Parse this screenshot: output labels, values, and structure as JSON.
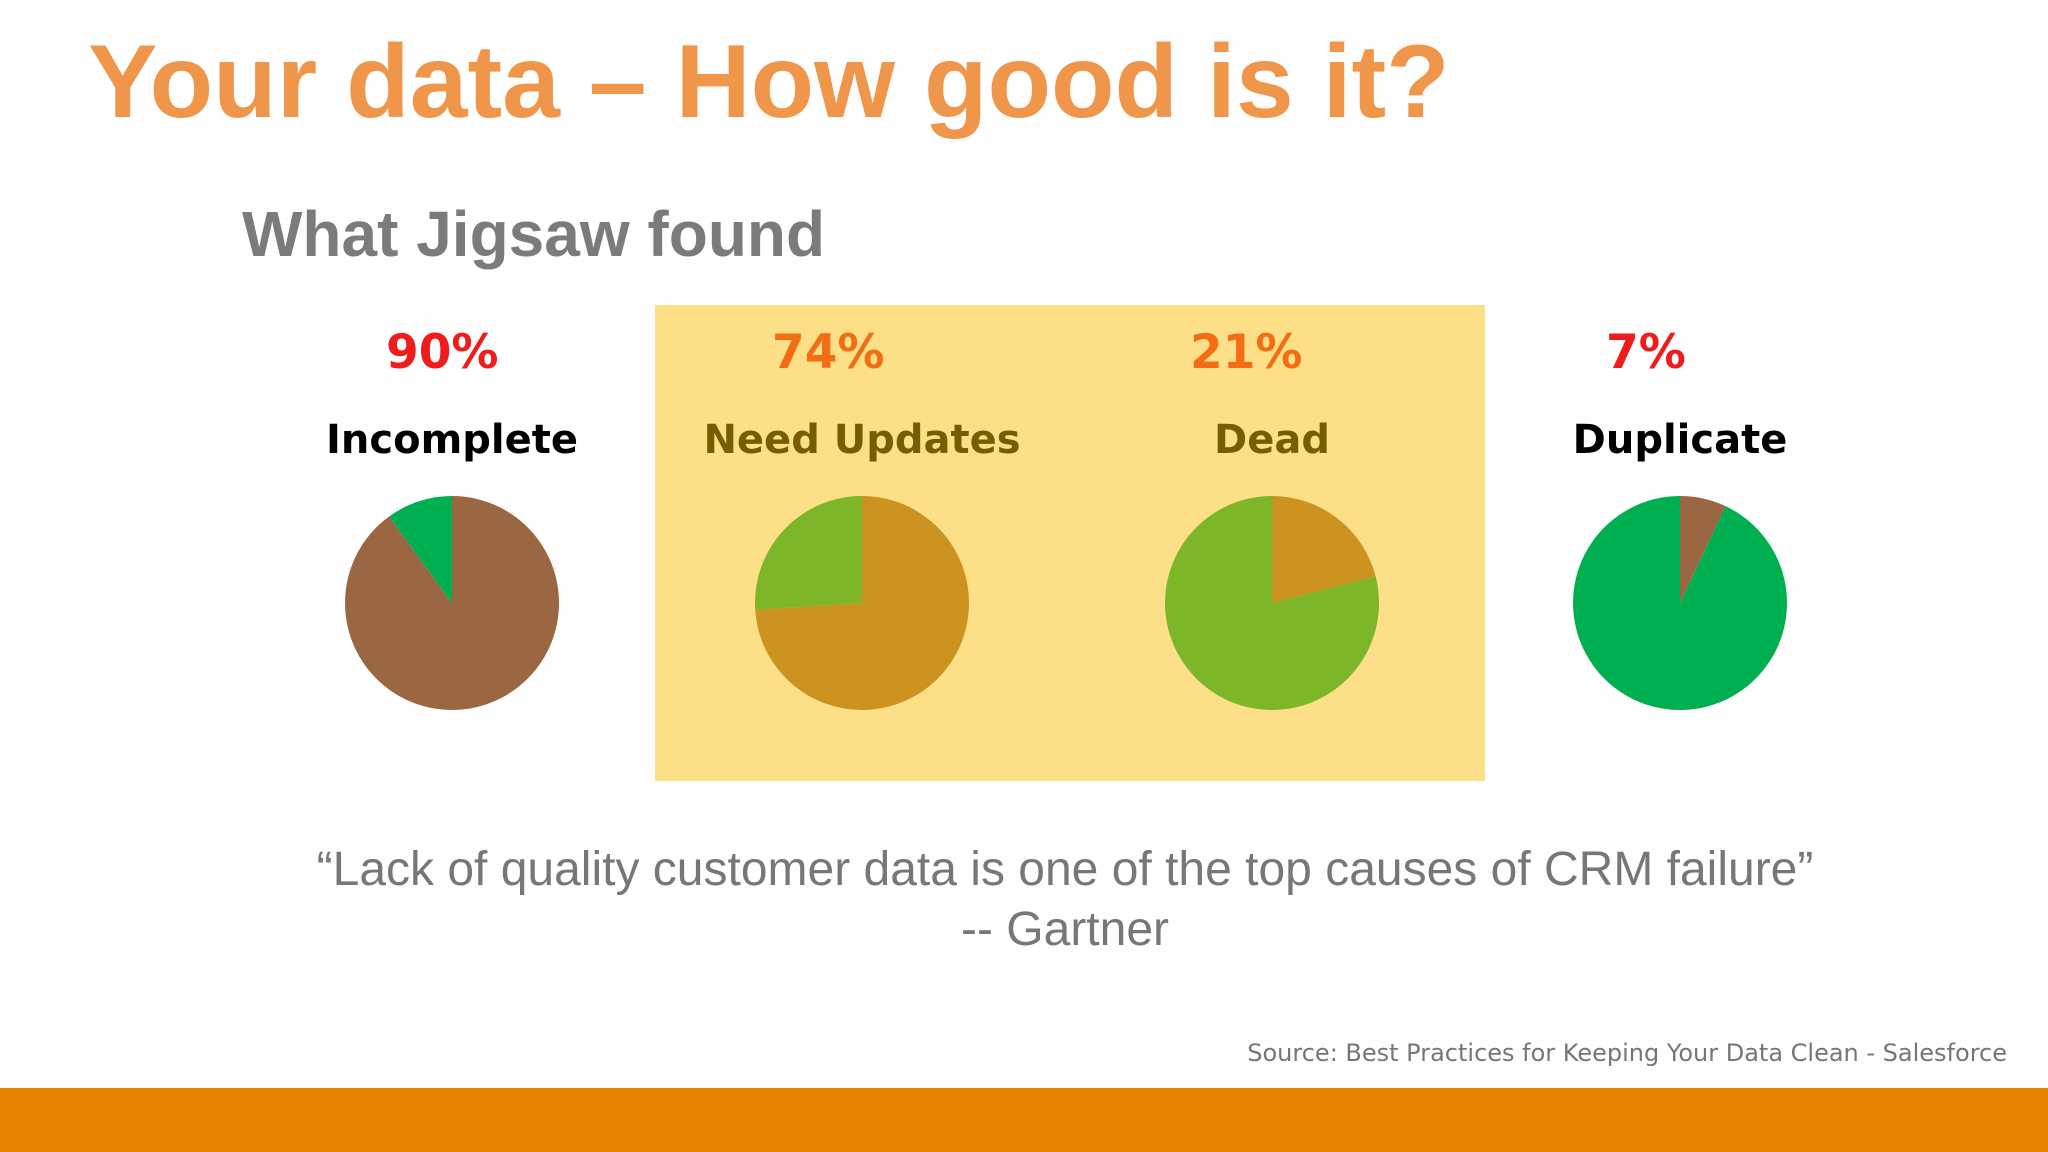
{
  "slide": {
    "title": "Your data – How good is it?",
    "subtitle": "What Jigsaw found",
    "quote_line1": "“Lack of quality customer data is one of the top causes of CRM failure”",
    "quote_line2": "-- Gartner",
    "source": "Source: Best Practices for Keeping Your Data Clean - Salesforce"
  },
  "colors": {
    "title": "#f0964a",
    "subtitle": "#7b7b7b",
    "highlight": "#fddf88",
    "footer_bar": "#e58400",
    "pct_red": "#ee1c1c",
    "pct_orange": "#f26d14",
    "label_black": "#000000",
    "label_dark_gold": "#7a5c00"
  },
  "chart_data": [
    {
      "type": "pie",
      "label": "Incomplete",
      "percent_text": "90%",
      "slices": [
        {
          "value": 90,
          "color": "#9a6742"
        },
        {
          "value": 10,
          "color": "#00b050"
        }
      ]
    },
    {
      "type": "pie",
      "label": "Need Updates",
      "percent_text": "74%",
      "slices": [
        {
          "value": 74,
          "color": "#cd9321"
        },
        {
          "value": 26,
          "color": "#7eb62a"
        }
      ]
    },
    {
      "type": "pie",
      "label": "Dead",
      "percent_text": "21%",
      "slices": [
        {
          "value": 21,
          "color": "#cd9321"
        },
        {
          "value": 79,
          "color": "#7eb62a"
        }
      ]
    },
    {
      "type": "pie",
      "label": "Duplicate",
      "percent_text": "7%",
      "slices": [
        {
          "value": 7,
          "color": "#9a6742"
        },
        {
          "value": 93,
          "color": "#00b050"
        }
      ]
    }
  ]
}
